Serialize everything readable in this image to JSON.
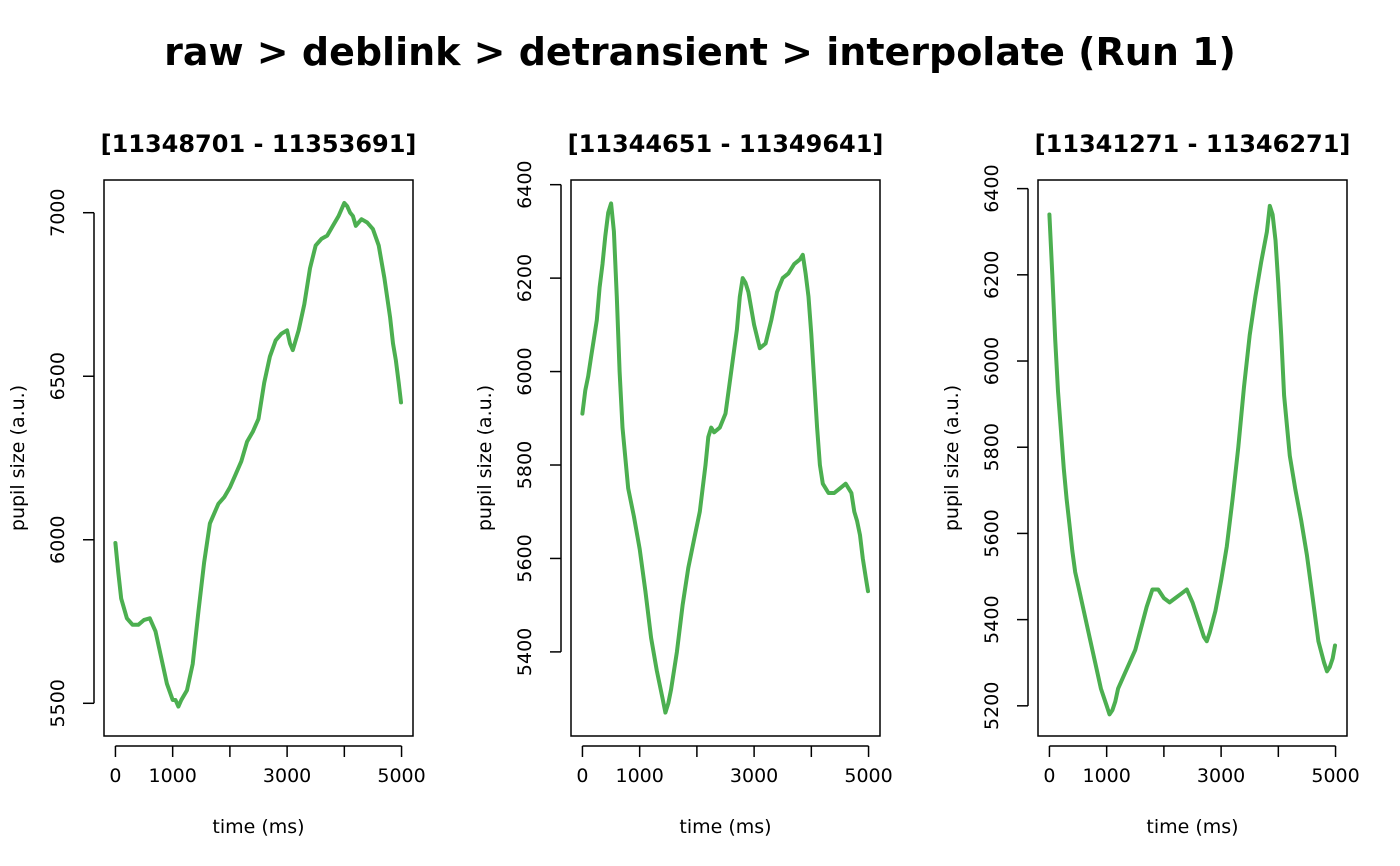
{
  "figure": {
    "title": "raw > deblink > detransient > interpolate (Run 1)",
    "line_color": "#4caf50"
  },
  "chart_data": [
    {
      "type": "line",
      "title": "[11348701 - 11353691]",
      "xlabel": "time (ms)",
      "ylabel": "pupil size (a.u.)",
      "xlim": [
        -200,
        5200
      ],
      "ylim": [
        5400,
        7100
      ],
      "x_ticks": [
        0,
        1000,
        2000,
        3000,
        4000,
        5000
      ],
      "x_tick_labels": [
        "0",
        "1000",
        "",
        "3000",
        "",
        "5000"
      ],
      "y_ticks": [
        5500,
        6000,
        6500,
        7000
      ],
      "y_tick_labels": [
        "5500",
        "6000",
        "6500",
        "7000"
      ],
      "series": [
        {
          "x": [
            0,
            50,
            100,
            200,
            300,
            400,
            500,
            600,
            700,
            800,
            900,
            1000,
            1050,
            1100,
            1150,
            1250,
            1350,
            1450,
            1550,
            1650,
            1800,
            1900,
            2000,
            2100,
            2200,
            2300,
            2400,
            2500,
            2600,
            2700,
            2800,
            2900,
            3000,
            3050,
            3100,
            3200,
            3300,
            3400,
            3500,
            3600,
            3700,
            3800,
            3900,
            4000,
            4050,
            4100,
            4150,
            4200,
            4300,
            4400,
            4500,
            4600,
            4700,
            4800,
            4850,
            4900,
            4950,
            4990
          ],
          "values": [
            5990,
            5900,
            5820,
            5760,
            5740,
            5740,
            5755,
            5760,
            5720,
            5640,
            5560,
            5510,
            5510,
            5490,
            5510,
            5540,
            5620,
            5780,
            5930,
            6050,
            6110,
            6130,
            6160,
            6200,
            6240,
            6300,
            6330,
            6370,
            6480,
            6560,
            6610,
            6630,
            6640,
            6600,
            6580,
            6640,
            6720,
            6830,
            6900,
            6920,
            6930,
            6960,
            6990,
            7030,
            7020,
            7000,
            6990,
            6960,
            6980,
            6970,
            6950,
            6900,
            6800,
            6680,
            6600,
            6550,
            6480,
            6420
          ]
        }
      ]
    },
    {
      "type": "line",
      "title": "[11344651 - 11349641]",
      "xlabel": "time (ms)",
      "ylabel": "pupil size (a.u.)",
      "xlim": [
        -200,
        5200
      ],
      "ylim": [
        5220,
        6410
      ],
      "x_ticks": [
        0,
        1000,
        2000,
        3000,
        4000,
        5000
      ],
      "x_tick_labels": [
        "0",
        "1000",
        "",
        "3000",
        "",
        "5000"
      ],
      "y_ticks": [
        5400,
        5600,
        5800,
        6000,
        6200,
        6400
      ],
      "y_tick_labels": [
        "5400",
        "5600",
        "5800",
        "6000",
        "6200",
        "6400"
      ],
      "series": [
        {
          "x": [
            0,
            50,
            100,
            150,
            200,
            250,
            300,
            350,
            400,
            450,
            500,
            550,
            600,
            650,
            700,
            800,
            900,
            1000,
            1100,
            1200,
            1300,
            1400,
            1450,
            1500,
            1550,
            1650,
            1750,
            1850,
            1950,
            2050,
            2150,
            2200,
            2250,
            2300,
            2400,
            2500,
            2600,
            2700,
            2750,
            2800,
            2850,
            2900,
            3000,
            3100,
            3200,
            3300,
            3400,
            3500,
            3600,
            3700,
            3800,
            3850,
            3900,
            3950,
            4000,
            4050,
            4100,
            4150,
            4200,
            4300,
            4400,
            4500,
            4600,
            4700,
            4750,
            4800,
            4850,
            4900,
            4950,
            4990
          ],
          "values": [
            5910,
            5960,
            5990,
            6030,
            6070,
            6110,
            6180,
            6230,
            6290,
            6340,
            6360,
            6300,
            6160,
            6000,
            5880,
            5750,
            5690,
            5620,
            5530,
            5430,
            5360,
            5300,
            5270,
            5290,
            5320,
            5400,
            5500,
            5580,
            5640,
            5700,
            5800,
            5860,
            5880,
            5870,
            5880,
            5910,
            6000,
            6090,
            6160,
            6200,
            6190,
            6170,
            6100,
            6050,
            6060,
            6110,
            6170,
            6200,
            6210,
            6230,
            6240,
            6250,
            6210,
            6160,
            6080,
            5980,
            5880,
            5800,
            5760,
            5740,
            5740,
            5750,
            5760,
            5740,
            5700,
            5680,
            5650,
            5600,
            5560,
            5530
          ]
        }
      ]
    },
    {
      "type": "line",
      "title": "[11341271 - 11346271]",
      "xlabel": "time (ms)",
      "ylabel": "pupil size (a.u.)",
      "xlim": [
        -200,
        5200
      ],
      "ylim": [
        5130,
        6420
      ],
      "x_ticks": [
        0,
        1000,
        2000,
        3000,
        4000,
        5000
      ],
      "x_tick_labels": [
        "0",
        "1000",
        "",
        "3000",
        "",
        "5000"
      ],
      "y_ticks": [
        5200,
        5400,
        5600,
        5800,
        6000,
        6200,
        6400
      ],
      "y_tick_labels": [
        "5200",
        "5400",
        "5600",
        "5800",
        "6000",
        "6200",
        "6400"
      ],
      "series": [
        {
          "x": [
            0,
            50,
            100,
            150,
            200,
            250,
            300,
            350,
            400,
            450,
            500,
            600,
            700,
            800,
            900,
            1000,
            1050,
            1100,
            1150,
            1200,
            1300,
            1400,
            1500,
            1600,
            1700,
            1800,
            1900,
            2000,
            2100,
            2200,
            2300,
            2400,
            2500,
            2600,
            2700,
            2750,
            2800,
            2900,
            3000,
            3100,
            3200,
            3300,
            3400,
            3500,
            3600,
            3700,
            3800,
            3850,
            3900,
            3950,
            4000,
            4050,
            4100,
            4200,
            4300,
            4400,
            4500,
            4600,
            4700,
            4800,
            4850,
            4900,
            4950,
            4990
          ],
          "values": [
            6340,
            6200,
            6050,
            5930,
            5840,
            5750,
            5680,
            5620,
            5560,
            5510,
            5480,
            5420,
            5360,
            5300,
            5240,
            5200,
            5180,
            5190,
            5210,
            5240,
            5270,
            5300,
            5330,
            5380,
            5430,
            5470,
            5470,
            5450,
            5440,
            5450,
            5460,
            5470,
            5440,
            5400,
            5360,
            5350,
            5370,
            5420,
            5490,
            5570,
            5680,
            5800,
            5940,
            6060,
            6150,
            6230,
            6300,
            6360,
            6340,
            6280,
            6180,
            6060,
            5920,
            5780,
            5700,
            5630,
            5550,
            5450,
            5350,
            5300,
            5280,
            5290,
            5310,
            5340
          ]
        }
      ]
    }
  ]
}
